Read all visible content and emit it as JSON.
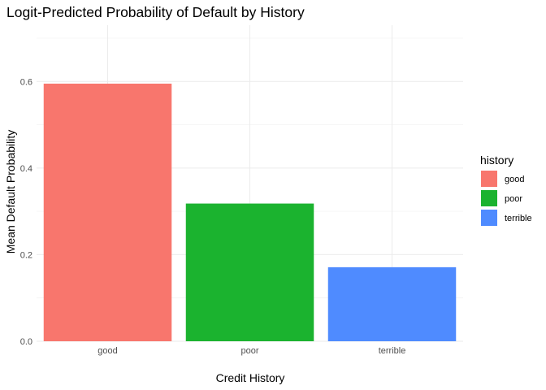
{
  "chart_data": {
    "type": "bar",
    "title": "Logit-Predicted Probability of Default by History",
    "xlabel": "Credit History",
    "ylabel": "Mean Default Probability",
    "categories": [
      "good",
      "poor",
      "terrible"
    ],
    "values": [
      0.595,
      0.318,
      0.171
    ],
    "colors": [
      "#F8766D",
      "#1BB32F",
      "#4F8BFF"
    ],
    "ylim": [
      0,
      0.73
    ],
    "yticks": [
      0.0,
      0.2,
      0.4,
      0.6
    ],
    "ytick_labels": [
      "0.0",
      "0.2",
      "0.4",
      "0.6"
    ],
    "grid": true,
    "legend": {
      "title": "history",
      "position": "right",
      "entries": [
        "good",
        "poor",
        "terrible"
      ]
    }
  }
}
